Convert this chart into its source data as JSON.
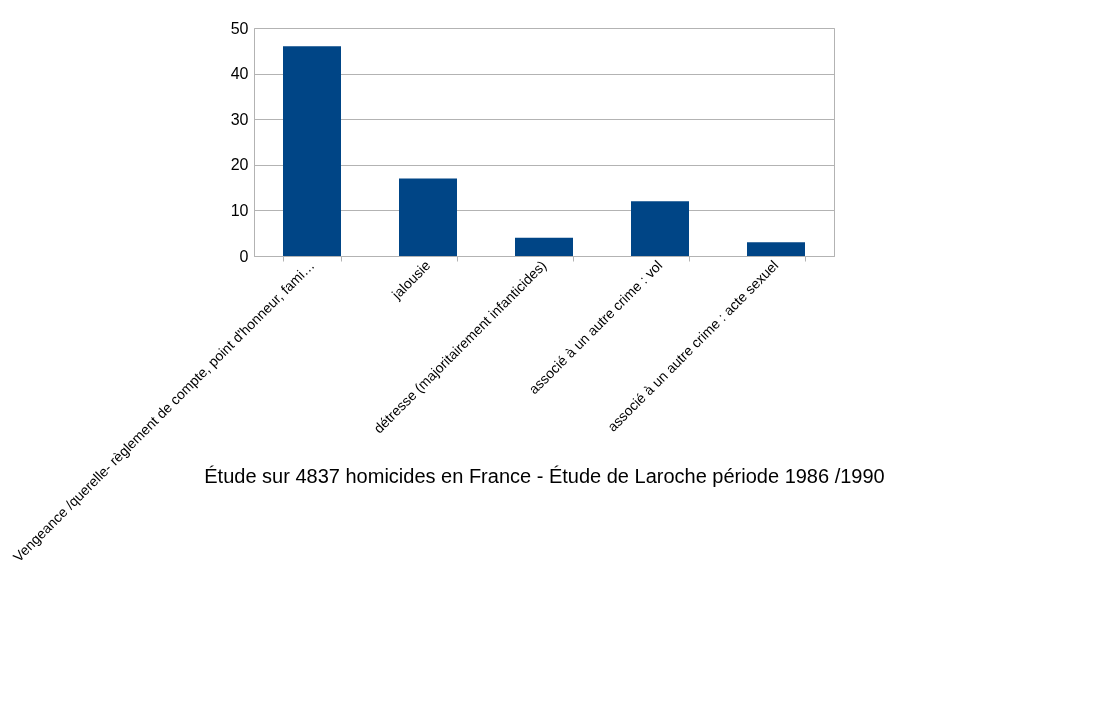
{
  "chart_data": {
    "type": "bar",
    "xlabel": "Étude sur 4837 homicides en France - Étude de Laroche période 1986 /1990",
    "categories": [
      "Vengeance /querelle- règlement de compte, point d'honneur, fami…",
      "jalousie",
      "détresse (majoritairement infanticides)",
      "associé à un autre crime : vol",
      "associé à un autre crime : acte sexuel"
    ],
    "values": [
      46,
      17,
      4,
      12,
      3
    ],
    "color": "#004586",
    "ylim": [
      0,
      50
    ],
    "yticks": [
      0,
      10,
      20,
      30,
      40,
      50
    ],
    "grid": "y"
  }
}
